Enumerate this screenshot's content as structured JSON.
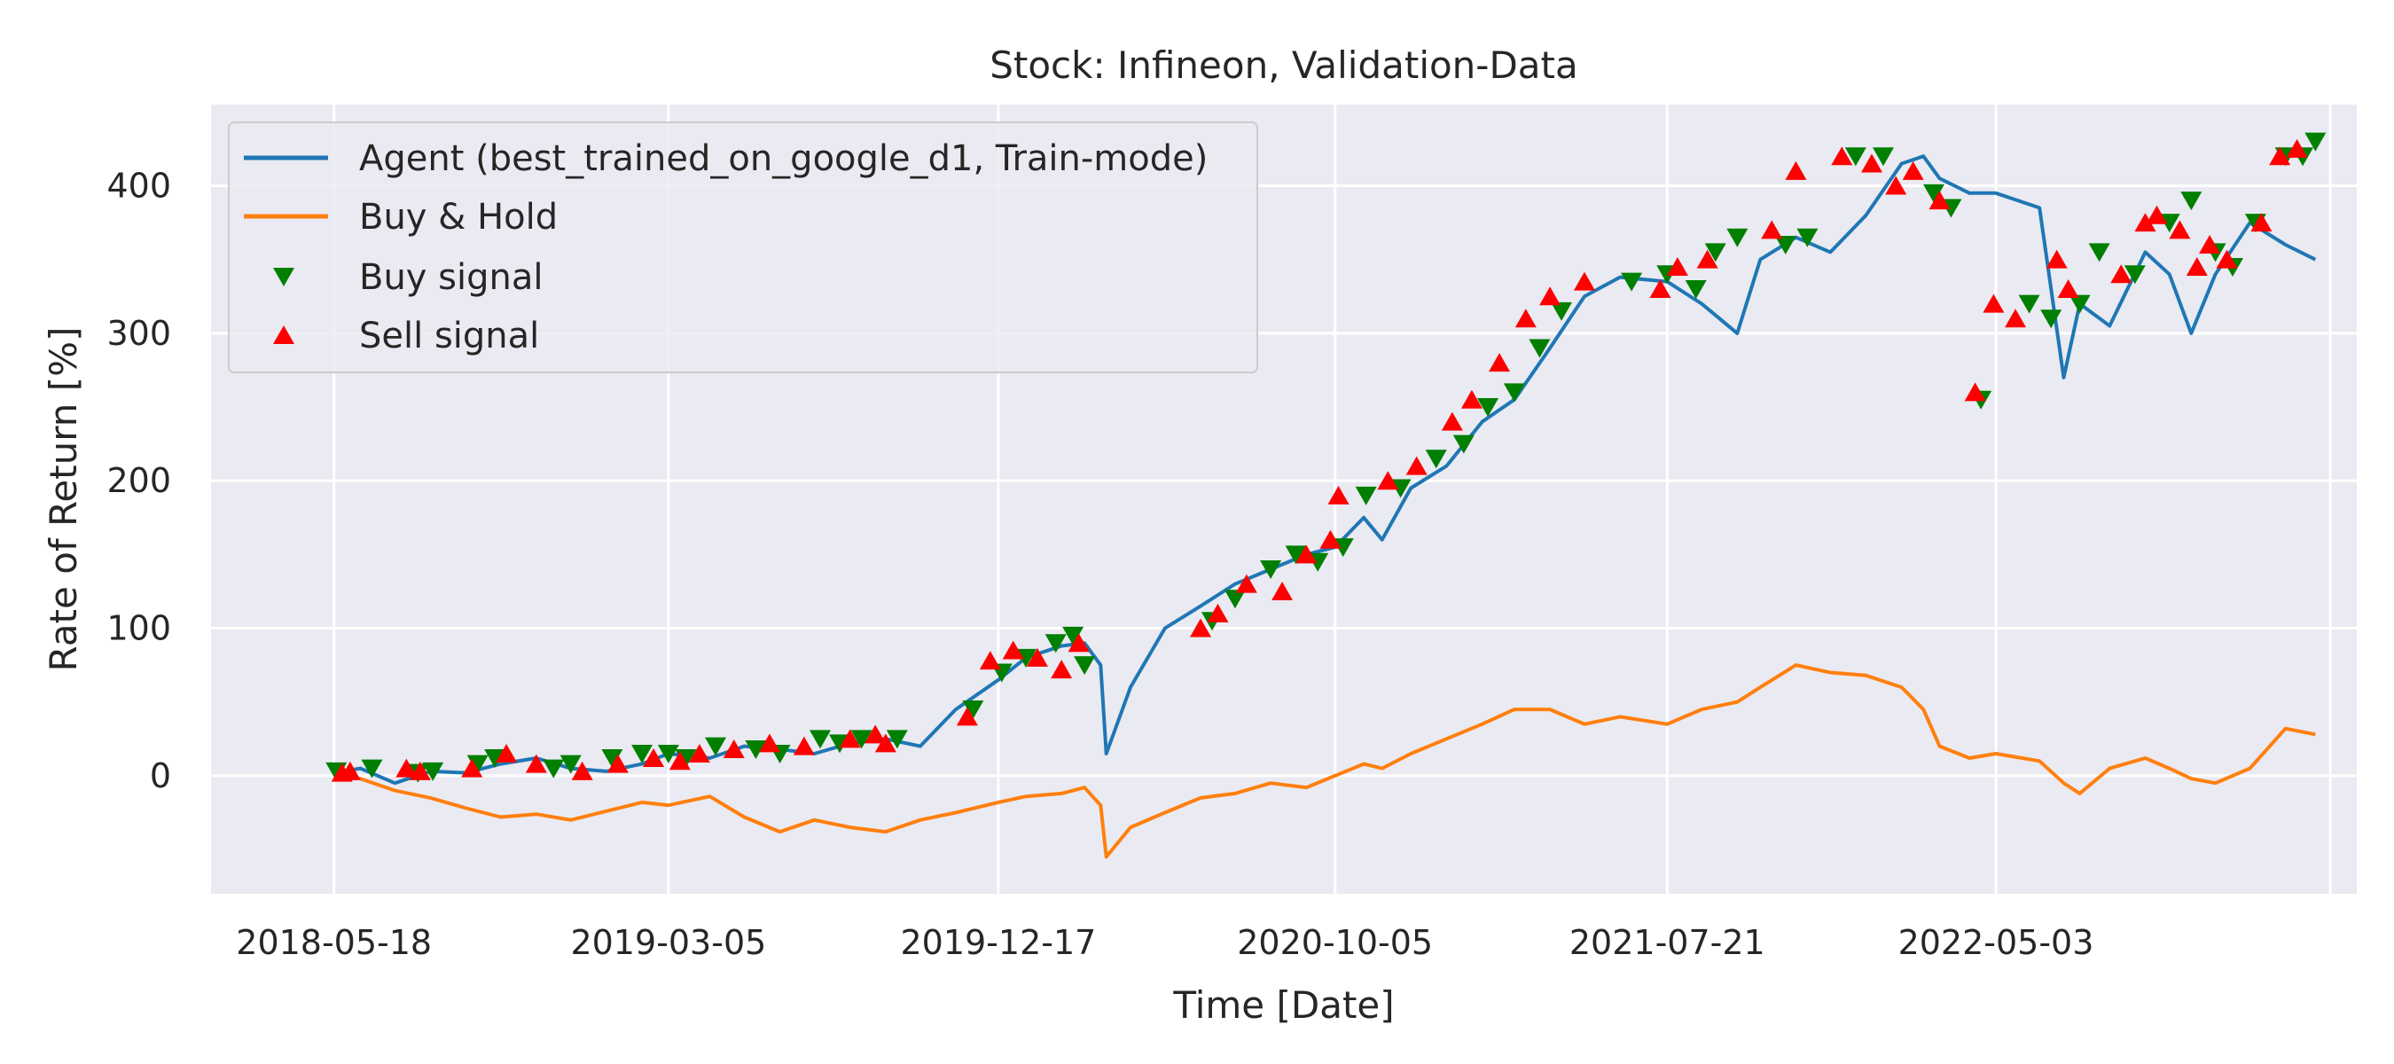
{
  "chart_data": {
    "type": "line",
    "title": "Stock: Infineon, Validation-Data",
    "xlabel": "Time [Date]",
    "ylabel": "Rate of Return [%]",
    "x_ticks": [
      "2018-05-18",
      "2019-03-05",
      "2019-12-17",
      "2020-10-05",
      "2021-07-21",
      "2022-05-03"
    ],
    "xlim": [
      "2018-01-31",
      "2023-03-13"
    ],
    "y_ticks": [
      "0",
      "100",
      "200",
      "300",
      "400"
    ],
    "ylim": [
      -80,
      455
    ],
    "grid": true,
    "legend_position": "top-left",
    "series": [
      {
        "name": "Agent (best_trained_on_google_d1, Train-mode)",
        "color": "#1f77b4",
        "x": [
          "2018-05-18",
          "2018-06-10",
          "2018-07-10",
          "2018-08-10",
          "2018-09-10",
          "2018-10-10",
          "2018-11-10",
          "2018-12-10",
          "2019-01-10",
          "2019-02-10",
          "2019-03-05",
          "2019-04-10",
          "2019-05-10",
          "2019-06-10",
          "2019-07-10",
          "2019-08-10",
          "2019-09-10",
          "2019-10-10",
          "2019-11-10",
          "2019-12-17",
          "2020-01-10",
          "2020-02-10",
          "2020-03-01",
          "2020-03-15",
          "2020-03-20",
          "2020-04-10",
          "2020-05-10",
          "2020-06-10",
          "2020-07-10",
          "2020-08-10",
          "2020-09-10",
          "2020-10-05",
          "2020-10-30",
          "2020-11-15",
          "2020-12-10",
          "2021-01-10",
          "2021-02-10",
          "2021-03-10",
          "2021-04-10",
          "2021-05-10",
          "2021-06-10",
          "2021-07-21",
          "2021-08-20",
          "2021-09-20",
          "2021-10-10",
          "2021-11-10",
          "2021-12-10",
          "2022-01-10",
          "2022-02-10",
          "2022-03-01",
          "2022-03-15",
          "2022-04-10",
          "2022-05-03",
          "2022-06-10",
          "2022-07-01",
          "2022-07-15",
          "2022-08-10",
          "2022-09-10",
          "2022-10-01",
          "2022-10-20",
          "2022-11-10",
          "2022-12-10",
          "2023-01-10",
          "2023-02-05"
        ],
        "y": [
          2,
          5,
          -5,
          3,
          2,
          8,
          12,
          5,
          3,
          8,
          15,
          12,
          20,
          18,
          15,
          22,
          25,
          20,
          45,
          65,
          80,
          88,
          90,
          75,
          15,
          60,
          100,
          115,
          130,
          140,
          150,
          155,
          175,
          160,
          195,
          210,
          240,
          255,
          290,
          325,
          338,
          335,
          320,
          300,
          350,
          365,
          355,
          380,
          415,
          420,
          405,
          395,
          395,
          385,
          270,
          320,
          305,
          355,
          340,
          300,
          340,
          375,
          360,
          350
        ]
      },
      {
        "name": "Buy & Hold",
        "color": "#ff7f0e",
        "x": [
          "2018-05-18",
          "2018-06-10",
          "2018-07-10",
          "2018-08-10",
          "2018-09-10",
          "2018-10-10",
          "2018-11-10",
          "2018-12-10",
          "2019-01-10",
          "2019-02-10",
          "2019-03-05",
          "2019-04-10",
          "2019-05-10",
          "2019-06-10",
          "2019-07-10",
          "2019-08-10",
          "2019-09-10",
          "2019-10-10",
          "2019-11-10",
          "2019-12-17",
          "2020-01-10",
          "2020-02-10",
          "2020-03-01",
          "2020-03-15",
          "2020-03-20",
          "2020-04-10",
          "2020-05-10",
          "2020-06-10",
          "2020-07-10",
          "2020-08-10",
          "2020-09-10",
          "2020-10-05",
          "2020-10-30",
          "2020-11-15",
          "2020-12-10",
          "2021-01-10",
          "2021-02-10",
          "2021-03-10",
          "2021-04-10",
          "2021-05-10",
          "2021-06-10",
          "2021-07-21",
          "2021-08-20",
          "2021-09-20",
          "2021-10-10",
          "2021-11-10",
          "2021-12-10",
          "2022-01-10",
          "2022-02-10",
          "2022-03-01",
          "2022-03-15",
          "2022-04-10",
          "2022-05-03",
          "2022-06-10",
          "2022-07-01",
          "2022-07-15",
          "2022-08-10",
          "2022-09-10",
          "2022-10-01",
          "2022-10-20",
          "2022-11-10",
          "2022-12-10",
          "2023-01-10",
          "2023-02-05"
        ],
        "y": [
          2,
          -2,
          -10,
          -15,
          -22,
          -28,
          -26,
          -30,
          -24,
          -18,
          -20,
          -14,
          -28,
          -38,
          -30,
          -35,
          -38,
          -30,
          -25,
          -18,
          -14,
          -12,
          -8,
          -20,
          -55,
          -35,
          -25,
          -15,
          -12,
          -5,
          -8,
          0,
          8,
          5,
          15,
          25,
          35,
          45,
          45,
          35,
          40,
          35,
          45,
          50,
          60,
          75,
          70,
          68,
          60,
          45,
          20,
          12,
          15,
          10,
          -5,
          -12,
          5,
          12,
          5,
          -2,
          -5,
          5,
          32,
          28
        ]
      }
    ],
    "markers": [
      {
        "name": "Buy signal",
        "color": "#007f00",
        "marker": "triangle-down",
        "x": [
          "2018-05-20",
          "2018-06-20",
          "2018-07-30",
          "2018-08-12",
          "2018-09-20",
          "2018-10-05",
          "2018-11-25",
          "2018-12-10",
          "2019-01-15",
          "2019-02-10",
          "2019-03-05",
          "2019-03-20",
          "2019-04-15",
          "2019-05-20",
          "2019-06-10",
          "2019-07-15",
          "2019-08-01",
          "2019-08-20",
          "2019-09-20",
          "2019-11-25",
          "2019-12-20",
          "2020-01-10",
          "2020-02-05",
          "2020-02-20",
          "2020-03-01",
          "2020-06-20",
          "2020-07-10",
          "2020-08-10",
          "2020-09-01",
          "2020-09-20",
          "2020-10-12",
          "2020-11-01",
          "2020-12-01",
          "2021-01-01",
          "2021-01-25",
          "2021-02-15",
          "2021-03-10",
          "2021-04-01",
          "2021-04-20",
          "2021-06-20",
          "2021-07-21",
          "2021-08-15",
          "2021-09-01",
          "2021-09-20",
          "2021-11-01",
          "2021-11-20",
          "2022-01-01",
          "2022-01-25",
          "2022-03-10",
          "2022-03-25",
          "2022-04-20",
          "2022-06-01",
          "2022-06-20",
          "2022-07-15",
          "2022-08-01",
          "2022-09-01",
          "2022-10-01",
          "2022-10-20",
          "2022-11-10",
          "2022-11-25",
          "2022-12-15",
          "2023-01-10",
          "2023-01-25",
          "2023-02-05"
        ],
        "y": [
          3,
          5,
          2,
          3,
          8,
          12,
          5,
          8,
          12,
          15,
          15,
          12,
          20,
          18,
          15,
          25,
          22,
          25,
          25,
          45,
          70,
          80,
          90,
          95,
          75,
          105,
          120,
          140,
          150,
          145,
          155,
          190,
          195,
          215,
          225,
          250,
          260,
          290,
          315,
          335,
          340,
          330,
          355,
          365,
          360,
          365,
          420,
          420,
          395,
          385,
          255,
          320,
          310,
          320,
          355,
          340,
          375,
          390,
          355,
          345,
          375,
          420,
          420,
          430
        ]
      },
      {
        "name": "Sell signal",
        "color": "#ff0000",
        "marker": "triangle-up",
        "x": [
          "2018-05-25",
          "2018-06-01",
          "2018-07-20",
          "2018-08-01",
          "2018-09-15",
          "2018-10-15",
          "2018-11-10",
          "2018-12-20",
          "2019-01-20",
          "2019-02-20",
          "2019-03-15",
          "2019-04-01",
          "2019-05-01",
          "2019-06-01",
          "2019-07-01",
          "2019-08-10",
          "2019-09-01",
          "2019-09-10",
          "2019-11-20",
          "2019-12-10",
          "2019-12-30",
          "2020-01-20",
          "2020-02-10",
          "2020-02-25",
          "2020-06-10",
          "2020-06-25",
          "2020-07-20",
          "2020-08-20",
          "2020-09-10",
          "2020-10-01",
          "2020-10-08",
          "2020-11-20",
          "2020-12-15",
          "2021-01-15",
          "2021-02-01",
          "2021-02-25",
          "2021-03-20",
          "2021-04-10",
          "2021-05-10",
          "2021-07-15",
          "2021-07-30",
          "2021-08-25",
          "2021-10-20",
          "2021-11-10",
          "2021-12-20",
          "2022-01-15",
          "2022-02-05",
          "2022-02-20",
          "2022-03-15",
          "2022-04-15",
          "2022-05-01",
          "2022-05-20",
          "2022-06-25",
          "2022-07-05",
          "2022-08-20",
          "2022-09-10",
          "2022-09-20",
          "2022-10-10",
          "2022-10-25",
          "2022-11-05",
          "2022-11-20",
          "2022-12-20",
          "2023-01-05",
          "2023-01-20"
        ],
        "y": [
          2,
          3,
          5,
          3,
          5,
          15,
          8,
          3,
          8,
          12,
          10,
          15,
          18,
          22,
          20,
          25,
          28,
          22,
          40,
          78,
          85,
          80,
          72,
          90,
          100,
          110,
          130,
          125,
          150,
          160,
          190,
          200,
          210,
          240,
          255,
          280,
          310,
          325,
          335,
          330,
          345,
          350,
          370,
          410,
          420,
          415,
          400,
          410,
          390,
          260,
          320,
          310,
          350,
          330,
          340,
          375,
          380,
          370,
          345,
          360,
          350,
          375,
          420,
          425
        ]
      }
    ]
  }
}
